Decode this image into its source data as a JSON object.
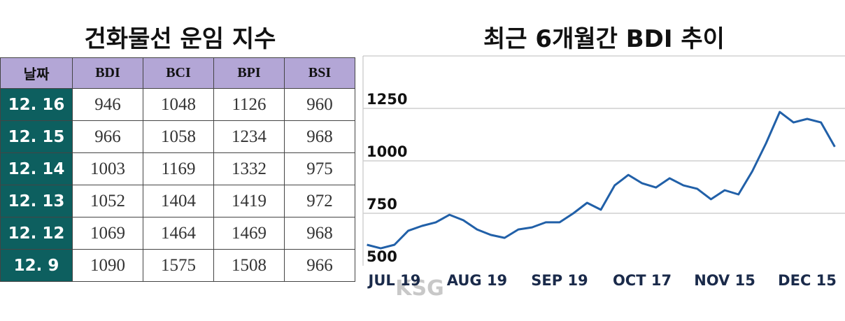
{
  "table_title": "건화물선 운임 지수",
  "table": {
    "headers": [
      "날짜",
      "BDI",
      "BCI",
      "BPI",
      "BSI"
    ],
    "rows": [
      [
        "12. 16",
        946,
        1048,
        1126,
        960
      ],
      [
        "12. 15",
        966,
        1058,
        1234,
        968
      ],
      [
        "12. 14",
        1003,
        1169,
        1332,
        975
      ],
      [
        "12. 13",
        1052,
        1404,
        1419,
        972
      ],
      [
        "12. 12",
        1069,
        1464,
        1469,
        968
      ],
      [
        "12. 9",
        1090,
        1575,
        1508,
        966
      ]
    ]
  },
  "watermark": "KSG",
  "chart_data": {
    "type": "line",
    "title": "최근 6개월간 BDI 추이",
    "categories": [
      null,
      null,
      "JUL 19",
      null,
      null,
      null,
      null,
      null,
      "AUG 19",
      null,
      null,
      null,
      null,
      null,
      "SEP 19",
      null,
      null,
      null,
      null,
      null,
      "OCT 17",
      null,
      null,
      null,
      null,
      null,
      "NOV 15",
      null,
      null,
      null,
      null,
      null,
      "DEC 15",
      null,
      null
    ],
    "series": [
      {
        "name": "BDI",
        "color": "#2160a8",
        "values": [
          600,
          583,
          600,
          667,
          690,
          707,
          743,
          717,
          673,
          647,
          633,
          673,
          683,
          707,
          707,
          750,
          800,
          767,
          883,
          933,
          893,
          873,
          917,
          883,
          867,
          817,
          860,
          840,
          950,
          1083,
          1233,
          1183,
          1200,
          1183,
          1067
        ]
      }
    ],
    "ylim": [
      500,
      1500
    ],
    "yticks": [
      500,
      750,
      1000,
      1250
    ],
    "grid": true
  }
}
